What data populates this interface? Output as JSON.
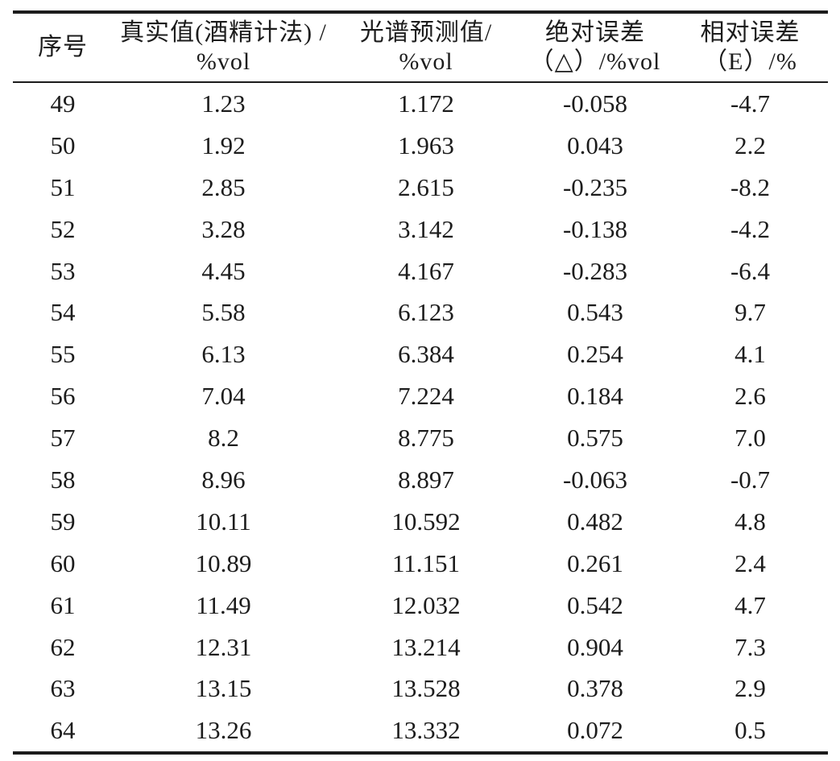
{
  "table": {
    "column_keys": [
      "index",
      "true_value",
      "predicted_value",
      "absolute_error",
      "relative_error"
    ],
    "columns": [
      {
        "line1": "序号",
        "line2": ""
      },
      {
        "line1": "真实值(酒精计法) /",
        "line2": "%vol"
      },
      {
        "line1": "光谱预测值/",
        "line2": "%vol"
      },
      {
        "line1": "绝对误差",
        "line2": "（△）/%vol"
      },
      {
        "line1": "相对误差",
        "line2": "（E）/%"
      }
    ],
    "rows": [
      [
        "49",
        "1.23",
        "1.172",
        "-0.058",
        "-4.7"
      ],
      [
        "50",
        "1.92",
        "1.963",
        "0.043",
        "2.2"
      ],
      [
        "51",
        "2.85",
        "2.615",
        "-0.235",
        "-8.2"
      ],
      [
        "52",
        "3.28",
        "3.142",
        "-0.138",
        "-4.2"
      ],
      [
        "53",
        "4.45",
        "4.167",
        "-0.283",
        "-6.4"
      ],
      [
        "54",
        "5.58",
        "6.123",
        "0.543",
        "9.7"
      ],
      [
        "55",
        "6.13",
        "6.384",
        "0.254",
        "4.1"
      ],
      [
        "56",
        "7.04",
        "7.224",
        "0.184",
        "2.6"
      ],
      [
        "57",
        "8.2",
        "8.775",
        "0.575",
        "7.0"
      ],
      [
        "58",
        "8.96",
        "8.897",
        "-0.063",
        "-0.7"
      ],
      [
        "59",
        "10.11",
        "10.592",
        "0.482",
        "4.8"
      ],
      [
        "60",
        "10.89",
        "11.151",
        "0.261",
        "2.4"
      ],
      [
        "61",
        "11.49",
        "12.032",
        "0.542",
        "4.7"
      ],
      [
        "62",
        "12.31",
        "13.214",
        "0.904",
        "7.3"
      ],
      [
        "63",
        "13.15",
        "13.528",
        "0.378",
        "2.9"
      ],
      [
        "64",
        "13.26",
        "13.332",
        "0.072",
        "0.5"
      ]
    ]
  }
}
